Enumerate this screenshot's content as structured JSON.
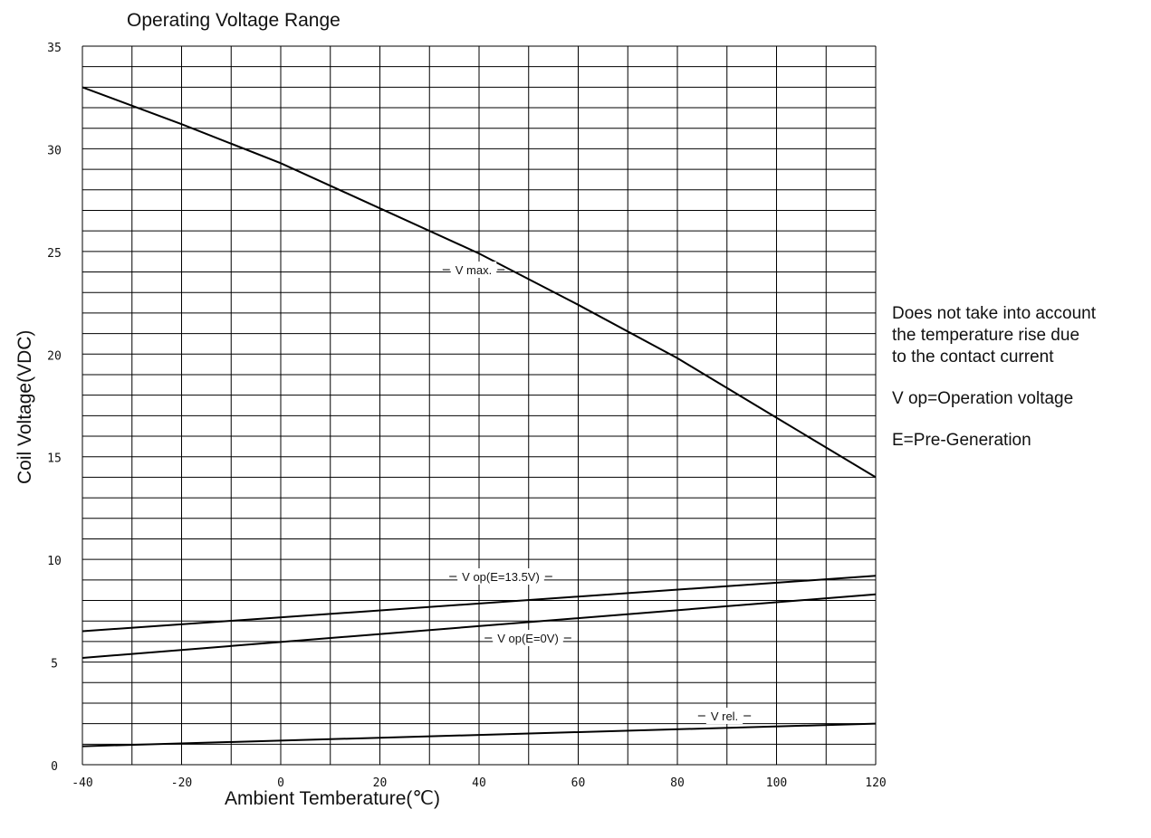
{
  "chart_data": {
    "type": "line",
    "title": "Operating Voltage Range",
    "xlabel": "Ambient Temberature(℃)",
    "ylabel": "Coil Voltage(VDC)",
    "xlim": [
      -40,
      120
    ],
    "ylim": [
      0,
      35
    ],
    "x_ticks": [
      "-40",
      "-20",
      "0",
      "20",
      "40",
      "60",
      "80",
      "100",
      "120"
    ],
    "y_ticks": [
      "0",
      "5",
      "10",
      "15",
      "20",
      "25",
      "30",
      "35"
    ],
    "grid": true,
    "series": [
      {
        "name": "V max.",
        "x": [
          -40,
          -20,
          0,
          20,
          40,
          60,
          80,
          100,
          120
        ],
        "y": [
          33.0,
          31.2,
          29.3,
          27.1,
          24.9,
          22.4,
          19.8,
          16.9,
          14.0
        ]
      },
      {
        "name": "V op(E=13.5V)",
        "x": [
          -40,
          120
        ],
        "y": [
          6.5,
          9.2
        ]
      },
      {
        "name": "V op(E=0V)",
        "x": [
          -40,
          120
        ],
        "y": [
          5.2,
          8.3
        ]
      },
      {
        "name": "V rel.",
        "x": [
          -40,
          120
        ],
        "y": [
          0.9,
          2.0
        ]
      }
    ]
  },
  "notes": {
    "line1": "Does not take into account",
    "line2": "the temperature rise due",
    "line3": "to the contact current",
    "vop_def": "V op=Operation voltage",
    "e_def": "E=Pre-Generation"
  }
}
